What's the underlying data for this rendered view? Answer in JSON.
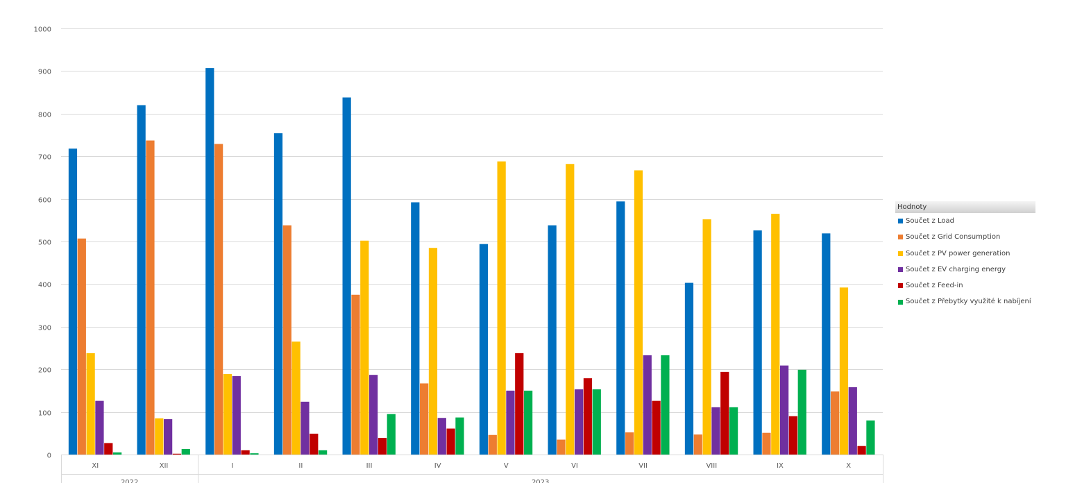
{
  "chart_data": {
    "type": "bar",
    "ylim": [
      0,
      1000
    ],
    "yticks": [
      0,
      100,
      200,
      300,
      400,
      500,
      600,
      700,
      800,
      900,
      1000
    ],
    "grid": true,
    "legend_position": "right",
    "legend_title": "Hodnoty",
    "categories": [
      "XI",
      "XII",
      "I",
      "II",
      "III",
      "IV",
      "V",
      "VI",
      "VII",
      "VIII",
      "IX",
      "X"
    ],
    "groups": [
      {
        "label": "2022",
        "count": 2
      },
      {
        "label": "2023",
        "count": 10
      }
    ],
    "series": [
      {
        "name": "Součet z Load",
        "color": "#0070c0",
        "values": [
          718,
          820,
          907,
          754,
          838,
          592,
          494,
          538,
          594,
          403,
          526,
          519
        ]
      },
      {
        "name": "Součet z Grid Consumption",
        "color": "#ed7d31",
        "values": [
          507,
          737,
          729,
          538,
          375,
          167,
          46,
          35,
          52,
          47,
          51,
          148
        ]
      },
      {
        "name": "Součet z PV power generation",
        "color": "#ffc000",
        "values": [
          238,
          85,
          189,
          265,
          502,
          485,
          688,
          682,
          667,
          552,
          565,
          392
        ]
      },
      {
        "name": "Součet z EV charging energy",
        "color": "#7030a0",
        "values": [
          126,
          83,
          184,
          124,
          187,
          86,
          150,
          153,
          233,
          111,
          209,
          158
        ]
      },
      {
        "name": "Součet z Feed-in",
        "color": "#c00000",
        "values": [
          27,
          2,
          10,
          49,
          39,
          61,
          238,
          179,
          126,
          194,
          90,
          20
        ]
      },
      {
        "name": "Součet z Přebytky využité k nabíjení",
        "color": "#00b050",
        "values": [
          5,
          13,
          3,
          10,
          95,
          87,
          150,
          153,
          233,
          111,
          199,
          80
        ]
      }
    ]
  }
}
